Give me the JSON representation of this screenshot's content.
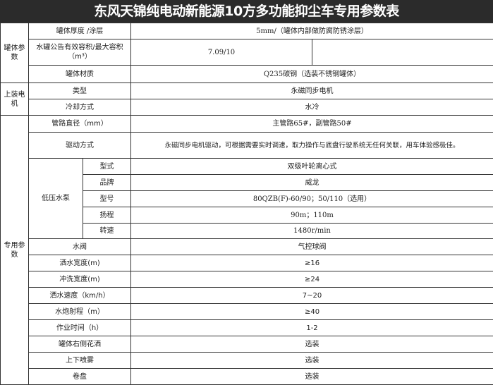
{
  "title": "东风天锦纯电动新能源10方多功能抑尘车专用参数表",
  "groups": {
    "tank": "罐体参数",
    "motor": "上装电机",
    "special": "专用参数",
    "pump": "低压水泵"
  },
  "rows": {
    "thickness": {
      "label": "罐体厚度 /涂层",
      "value": "5mm/（罐体内部做防腐防锈涂层）"
    },
    "volume": {
      "label": "水罐公告有效容积/最大容积（m³）",
      "value": "7.09/10",
      "extra": ""
    },
    "material": {
      "label": "罐体材质",
      "value": "Q235碳钢（选装不锈钢罐体）"
    },
    "motor_type": {
      "label": "类型",
      "value": "永磁同步电机"
    },
    "cooling": {
      "label": "冷却方式",
      "value": "水冷"
    },
    "pipe": {
      "label": "管路直径（mm）",
      "value": "主管路65#，副管路50#"
    },
    "drive": {
      "label": "驱动方式",
      "value": "永磁同步电机驱动，可根据需要实时调速，取力操作与底盘行驶系统无任何关联，用车体验感极佳。"
    },
    "pump_form": {
      "label": "型式",
      "value": "双级叶轮离心式"
    },
    "pump_brand": {
      "label": "品牌",
      "value": "威龙"
    },
    "pump_model": {
      "label": "型号",
      "value": "80QZB(F)-60/90；50/110（选用）"
    },
    "pump_head": {
      "label": "扬程",
      "value": "90m；110m"
    },
    "pump_speed": {
      "label": "转速",
      "value": "1480r/min"
    },
    "valve": {
      "label": "水阀",
      "value": "气控球阀"
    },
    "spray_width": {
      "label": "洒水宽度(m)",
      "value": "≥16"
    },
    "wash_width": {
      "label": "冲洗宽度(m)",
      "value": "≥24"
    },
    "spray_speed": {
      "label": "洒水速度（km/h）",
      "value": "7~20"
    },
    "cannon": {
      "label": "水炮射程（m）",
      "value": "≥40"
    },
    "work_time": {
      "label": "作业时间（h）",
      "value": "1-2"
    },
    "right_spray": {
      "label": "罐体右侧花洒",
      "value": "选装"
    },
    "mist": {
      "label": "上下喷雾",
      "value": "选装"
    },
    "reel": {
      "label": "卷盘",
      "value": "选装"
    }
  }
}
